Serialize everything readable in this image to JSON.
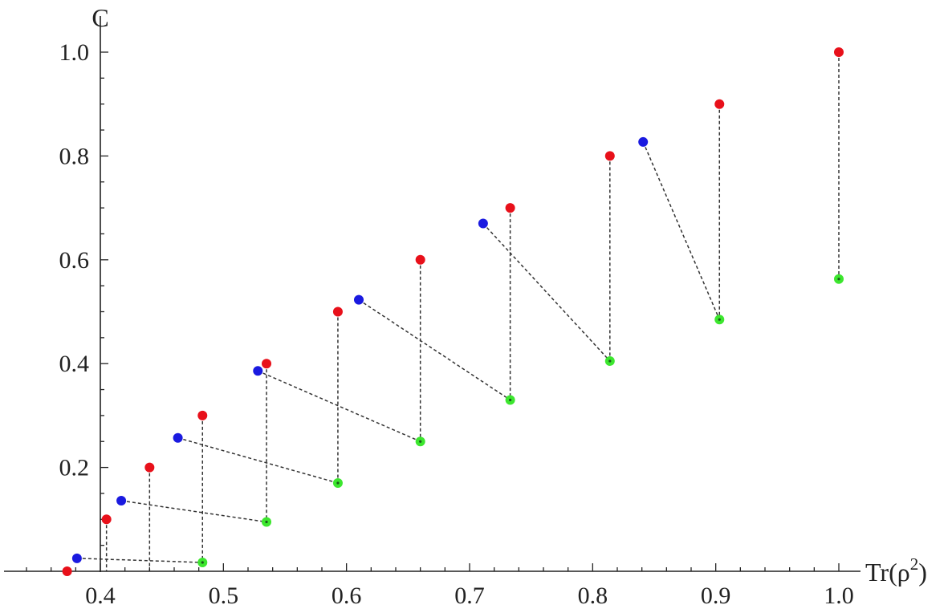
{
  "chart_data": {
    "type": "scatter",
    "xlabel": "Tr(ρ²)",
    "ylabel": "C",
    "xlim": [
      0.3,
      1.0
    ],
    "ylim": [
      0.0,
      1.0
    ],
    "x_ticks": [
      "0.4",
      "0.5",
      "0.6",
      "0.7",
      "0.8",
      "0.9",
      "1.0"
    ],
    "y_ticks": [
      "0.2",
      "0.4",
      "0.6",
      "0.8",
      "1.0"
    ],
    "colors": {
      "red": "#e8101a",
      "blue": "#1a1ae0",
      "green": "#3ce62e"
    },
    "series": [
      {
        "color": "red",
        "points": [
          [
            0.373,
            0.0
          ],
          [
            0.405,
            0.1
          ],
          [
            0.44,
            0.2
          ],
          [
            0.483,
            0.3
          ],
          [
            0.535,
            0.4
          ],
          [
            0.593,
            0.5
          ],
          [
            0.66,
            0.6
          ],
          [
            0.733,
            0.7
          ],
          [
            0.814,
            0.8
          ],
          [
            0.903,
            0.9
          ],
          [
            1.0,
            1.0
          ]
        ]
      },
      {
        "color": "blue",
        "points": [
          [
            0.381,
            0.025
          ],
          [
            0.417,
            0.136
          ],
          [
            0.463,
            0.257
          ],
          [
            0.528,
            0.386
          ],
          [
            0.61,
            0.523
          ],
          [
            0.711,
            0.67
          ],
          [
            0.841,
            0.827
          ]
        ]
      },
      {
        "color": "green",
        "points": [
          [
            0.483,
            0.017
          ],
          [
            0.535,
            0.095
          ],
          [
            0.593,
            0.17
          ],
          [
            0.66,
            0.25
          ],
          [
            0.733,
            0.33
          ],
          [
            0.814,
            0.405
          ],
          [
            0.903,
            0.485
          ],
          [
            1.0,
            0.563
          ]
        ]
      }
    ],
    "vertical_dashed_links": [
      [
        [
          0.405,
          0.1
        ],
        [
          0.405,
          0.0
        ]
      ],
      [
        [
          0.44,
          0.2
        ],
        [
          0.44,
          0.0
        ]
      ],
      [
        [
          0.483,
          0.3
        ],
        [
          0.483,
          0.017
        ]
      ],
      [
        [
          0.535,
          0.4
        ],
        [
          0.535,
          0.095
        ]
      ],
      [
        [
          0.593,
          0.5
        ],
        [
          0.593,
          0.17
        ]
      ],
      [
        [
          0.66,
          0.6
        ],
        [
          0.66,
          0.25
        ]
      ],
      [
        [
          0.733,
          0.7
        ],
        [
          0.733,
          0.33
        ]
      ],
      [
        [
          0.814,
          0.8
        ],
        [
          0.814,
          0.405
        ]
      ],
      [
        [
          0.903,
          0.9
        ],
        [
          0.903,
          0.485
        ]
      ],
      [
        [
          1.0,
          1.0
        ],
        [
          1.0,
          0.563
        ]
      ]
    ],
    "diagonal_dashed_links": [
      [
        [
          0.381,
          0.025
        ],
        [
          0.483,
          0.017
        ]
      ],
      [
        [
          0.417,
          0.136
        ],
        [
          0.535,
          0.095
        ]
      ],
      [
        [
          0.463,
          0.257
        ],
        [
          0.593,
          0.17
        ]
      ],
      [
        [
          0.528,
          0.386
        ],
        [
          0.66,
          0.25
        ]
      ],
      [
        [
          0.61,
          0.523
        ],
        [
          0.733,
          0.33
        ]
      ],
      [
        [
          0.711,
          0.67
        ],
        [
          0.814,
          0.405
        ]
      ],
      [
        [
          0.841,
          0.827
        ],
        [
          0.903,
          0.485
        ]
      ]
    ]
  }
}
